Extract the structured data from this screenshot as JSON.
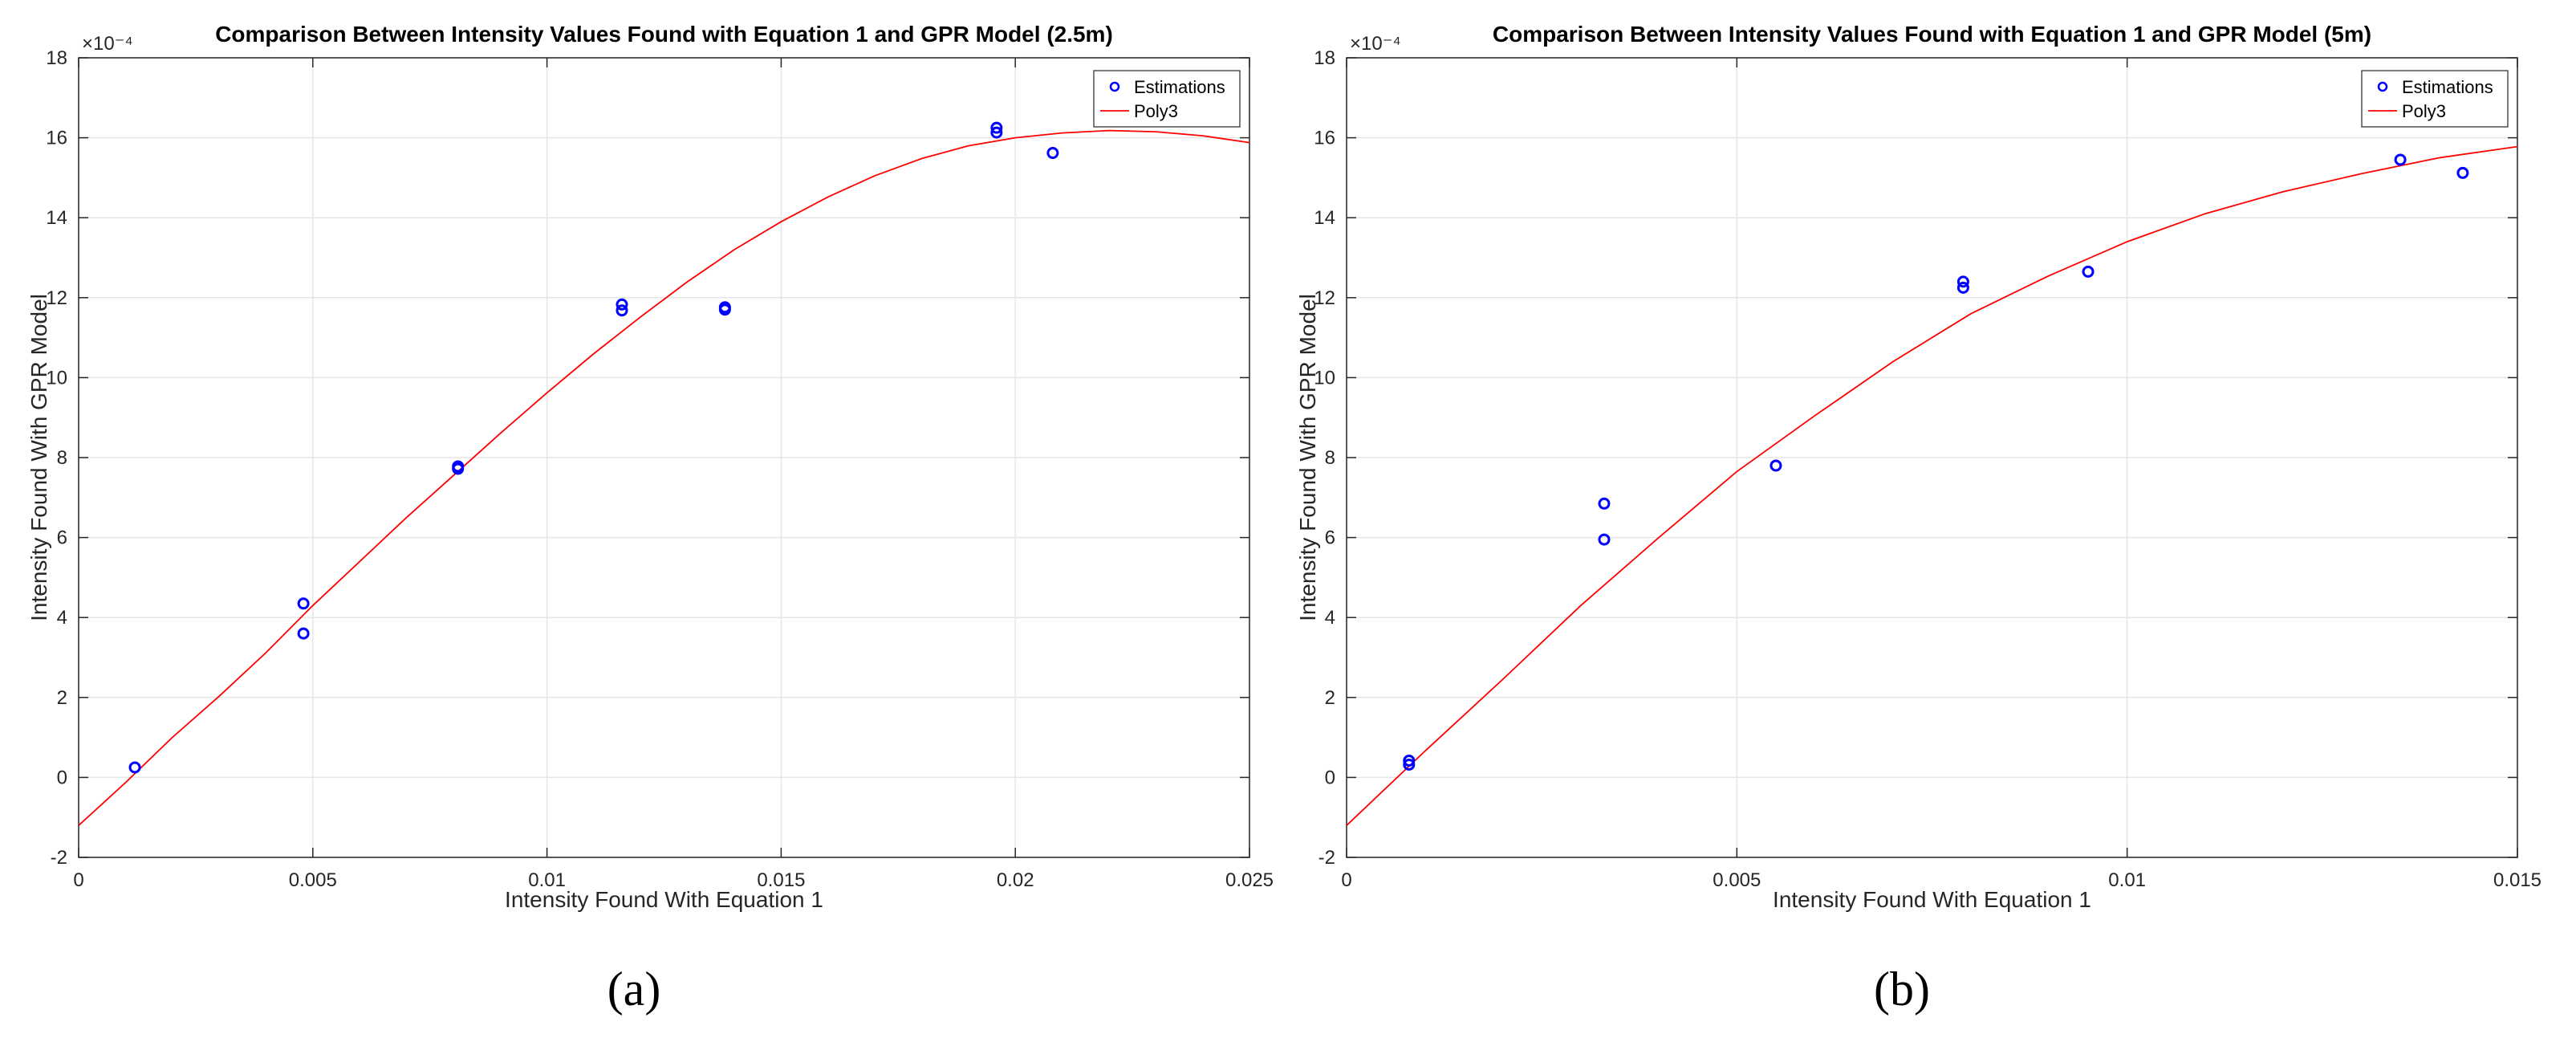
{
  "captions": [
    "(a)",
    "(b)"
  ],
  "chart_data": [
    {
      "type": "scatter",
      "title": "Comparison Between Intensity Values  Found with Equation 1 and GPR Model (2.5m)",
      "xlabel": "Intensity Found With Equation 1",
      "ylabel": "Intensity Found With GPR Model",
      "y_exponent": "×10⁻⁴",
      "xlim": [
        0,
        0.025
      ],
      "ylim": [
        -2,
        18
      ],
      "xticks": [
        0,
        0.005,
        0.01,
        0.015,
        0.02,
        0.025
      ],
      "xtick_labels": [
        "0",
        "0.005",
        "0.01",
        "0.015",
        "0.02",
        "0.025"
      ],
      "yticks": [
        -2,
        0,
        2,
        4,
        6,
        8,
        10,
        12,
        14,
        16,
        18
      ],
      "grid": true,
      "legend_position": "top-right",
      "series": [
        {
          "name": "Estimations",
          "kind": "scatter",
          "color": "#0000ff",
          "points": [
            [
              0.0012,
              0.25
            ],
            [
              0.0048,
              4.35
            ],
            [
              0.0048,
              3.6
            ],
            [
              0.0081,
              7.78
            ],
            [
              0.0081,
              7.72
            ],
            [
              0.0116,
              11.83
            ],
            [
              0.0116,
              11.68
            ],
            [
              0.0138,
              11.76
            ],
            [
              0.0138,
              11.7
            ],
            [
              0.0196,
              16.25
            ],
            [
              0.0196,
              16.13
            ],
            [
              0.0208,
              15.62
            ]
          ]
        },
        {
          "name": "Poly3",
          "kind": "line",
          "color": "#ff0000",
          "curve": [
            [
              0,
              -1.2
            ],
            [
              0.001,
              -0.13
            ],
            [
              0.002,
              1.0
            ],
            [
              0.003,
              2.03
            ],
            [
              0.004,
              3.12
            ],
            [
              0.005,
              4.3
            ],
            [
              0.006,
              5.4
            ],
            [
              0.007,
              6.5
            ],
            [
              0.008,
              7.55
            ],
            [
              0.009,
              8.6
            ],
            [
              0.01,
              9.62
            ],
            [
              0.011,
              10.6
            ],
            [
              0.012,
              11.52
            ],
            [
              0.013,
              12.4
            ],
            [
              0.014,
              13.2
            ],
            [
              0.015,
              13.9
            ],
            [
              0.016,
              14.52
            ],
            [
              0.017,
              15.05
            ],
            [
              0.018,
              15.48
            ],
            [
              0.019,
              15.8
            ],
            [
              0.02,
              16.0
            ],
            [
              0.021,
              16.12
            ],
            [
              0.022,
              16.18
            ],
            [
              0.023,
              16.15
            ],
            [
              0.024,
              16.05
            ],
            [
              0.025,
              15.88
            ]
          ]
        }
      ]
    },
    {
      "type": "scatter",
      "title": "Comparison Between Intensity Values  Found with Equation 1 and GPR Model (5m)",
      "xlabel": "Intensity Found With Equation 1",
      "ylabel": "Intensity Found With GPR Model",
      "y_exponent": "×10⁻⁴",
      "xlim": [
        0,
        0.015
      ],
      "ylim": [
        -2,
        18
      ],
      "xticks": [
        0,
        0.005,
        0.01,
        0.015
      ],
      "xtick_labels": [
        "0",
        "0.005",
        "0.01",
        "0.015"
      ],
      "yticks": [
        -2,
        0,
        2,
        4,
        6,
        8,
        10,
        12,
        14,
        16,
        18
      ],
      "grid": true,
      "legend_position": "top-right",
      "series": [
        {
          "name": "Estimations",
          "kind": "scatter",
          "color": "#0000ff",
          "points": [
            [
              0.0008,
              0.42
            ],
            [
              0.0008,
              0.32
            ],
            [
              0.0033,
              6.85
            ],
            [
              0.0033,
              5.95
            ],
            [
              0.0055,
              7.8
            ],
            [
              0.0079,
              12.4
            ],
            [
              0.0079,
              12.25
            ],
            [
              0.0095,
              12.65
            ],
            [
              0.0135,
              15.45
            ],
            [
              0.0143,
              15.12
            ]
          ]
        },
        {
          "name": "Poly3",
          "kind": "line",
          "color": "#ff0000",
          "curve": [
            [
              0,
              -1.2
            ],
            [
              0.001,
              0.65
            ],
            [
              0.002,
              2.45
            ],
            [
              0.003,
              4.3
            ],
            [
              0.004,
              6.0
            ],
            [
              0.005,
              7.65
            ],
            [
              0.006,
              9.05
            ],
            [
              0.007,
              10.4
            ],
            [
              0.008,
              11.6
            ],
            [
              0.009,
              12.55
            ],
            [
              0.01,
              13.4
            ],
            [
              0.011,
              14.1
            ],
            [
              0.012,
              14.65
            ],
            [
              0.013,
              15.1
            ],
            [
              0.014,
              15.5
            ],
            [
              0.015,
              15.78
            ]
          ]
        }
      ]
    }
  ]
}
